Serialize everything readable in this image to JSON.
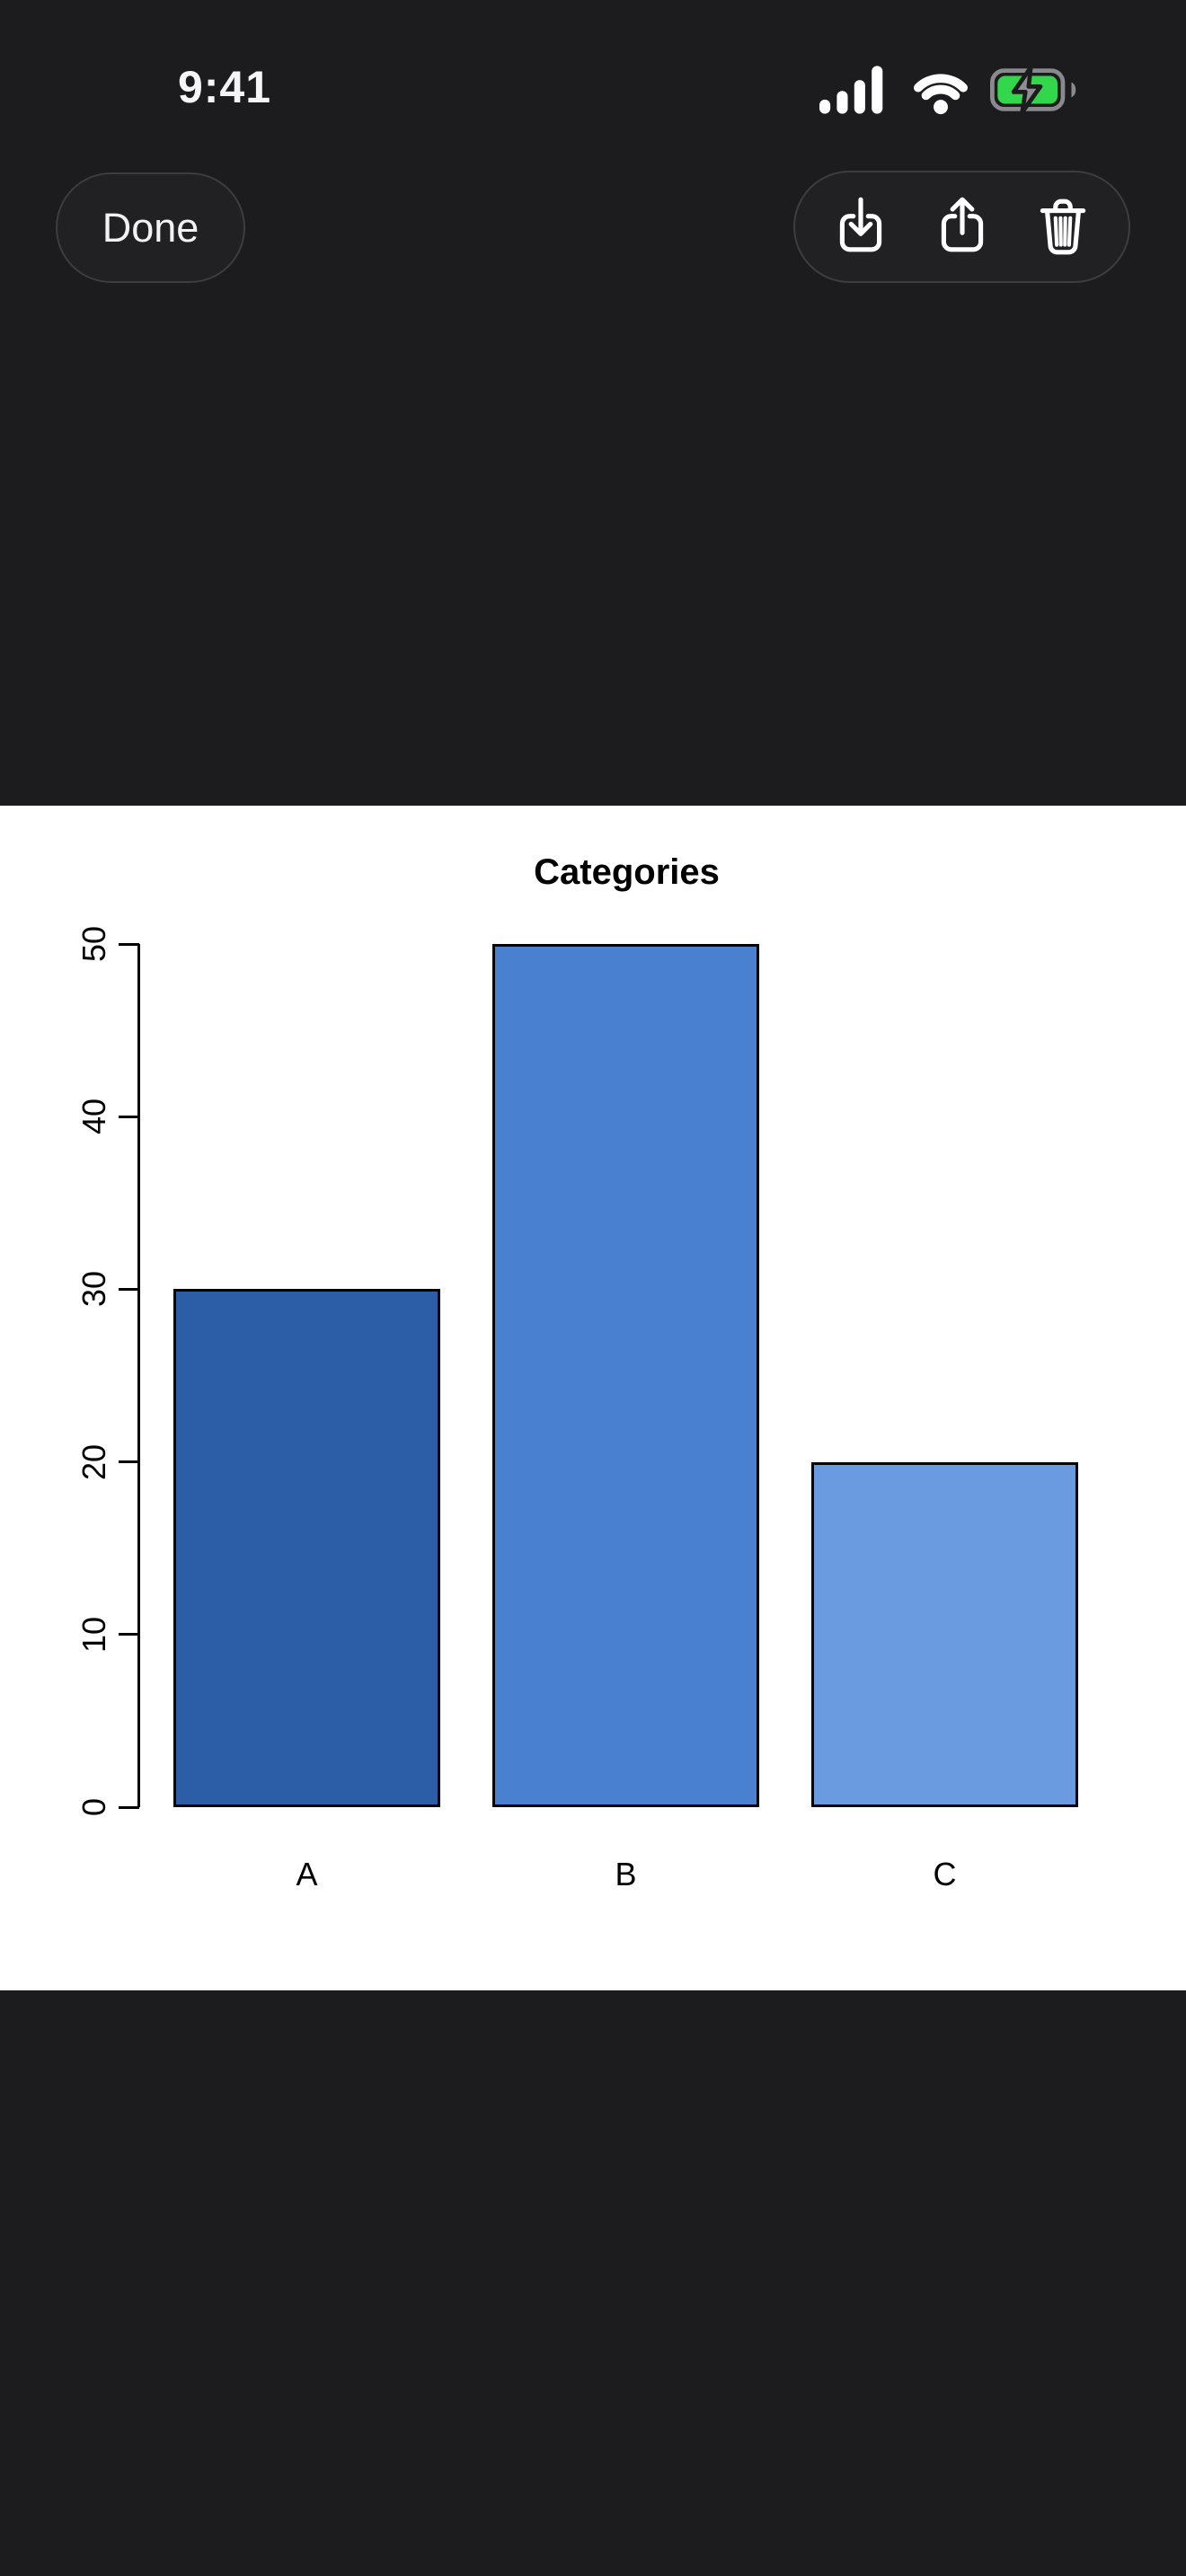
{
  "status_bar": {
    "time": "9:41",
    "icons": [
      "cellular-signal-full",
      "wifi-full",
      "battery-charging"
    ],
    "battery_fill_color": "#32d74b"
  },
  "toolbar": {
    "done_label": "Done",
    "action_icons": [
      "download",
      "share",
      "trash"
    ]
  },
  "colors": {
    "background": "#1c1c1e",
    "pill_border": "#3d3d3f",
    "canvas": "#ffffff",
    "status_text": "#f5f5f7"
  },
  "chart_data": {
    "type": "bar",
    "title": "Categories",
    "categories": [
      "A",
      "B",
      "C"
    ],
    "values": [
      30,
      50,
      20
    ],
    "bar_colors": [
      "#2b5ea7",
      "#4a80d0",
      "#6a9ae0"
    ],
    "bar_border_color": "#000000",
    "xlabel": "",
    "ylabel": "",
    "ylim": [
      0,
      50
    ],
    "yticks": [
      0,
      10,
      20,
      30,
      40,
      50
    ],
    "grid": false,
    "legend": "none"
  }
}
